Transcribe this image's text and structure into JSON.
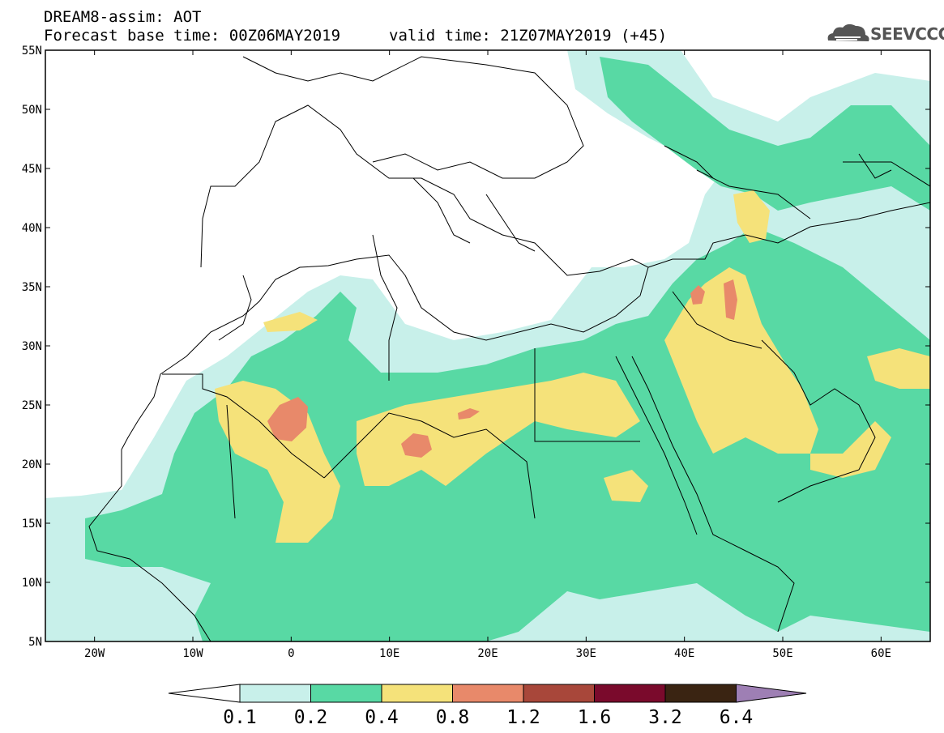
{
  "title": {
    "line1": "DREAM8-assim: AOT",
    "line2": "Forecast base time: 00Z06MAY2019",
    "line3": "valid time: 21Z07MAY2019 (+45)"
  },
  "logo": {
    "text": "SEEVCCC",
    "icon": "cloud-icon"
  },
  "map": {
    "lat_labels": [
      "55N",
      "50N",
      "45N",
      "40N",
      "35N",
      "30N",
      "25N",
      "20N",
      "15N",
      "10N",
      "5N"
    ],
    "lon_labels": [
      "20W",
      "10W",
      "0",
      "10E",
      "20E",
      "30E",
      "40E",
      "50E",
      "60E"
    ],
    "extent": {
      "lon_min": -25,
      "lon_max": 65,
      "lat_min": 5,
      "lat_max": 55
    }
  },
  "colorbar": {
    "labels": [
      "0.1",
      "0.2",
      "0.4",
      "0.8",
      "1.2",
      "1.6",
      "3.2",
      "6.4"
    ],
    "colors": [
      "#ffffff",
      "#c8f0ea",
      "#58d9a4",
      "#f5e27a",
      "#e8896a",
      "#a8473a",
      "#7a0a2c",
      "#3a2412",
      "#9e7fb4"
    ]
  },
  "colors": {
    "light_teal": "#c8f0ea",
    "green": "#58d9a4",
    "yellow": "#f5e27a",
    "salmon": "#e8896a"
  }
}
